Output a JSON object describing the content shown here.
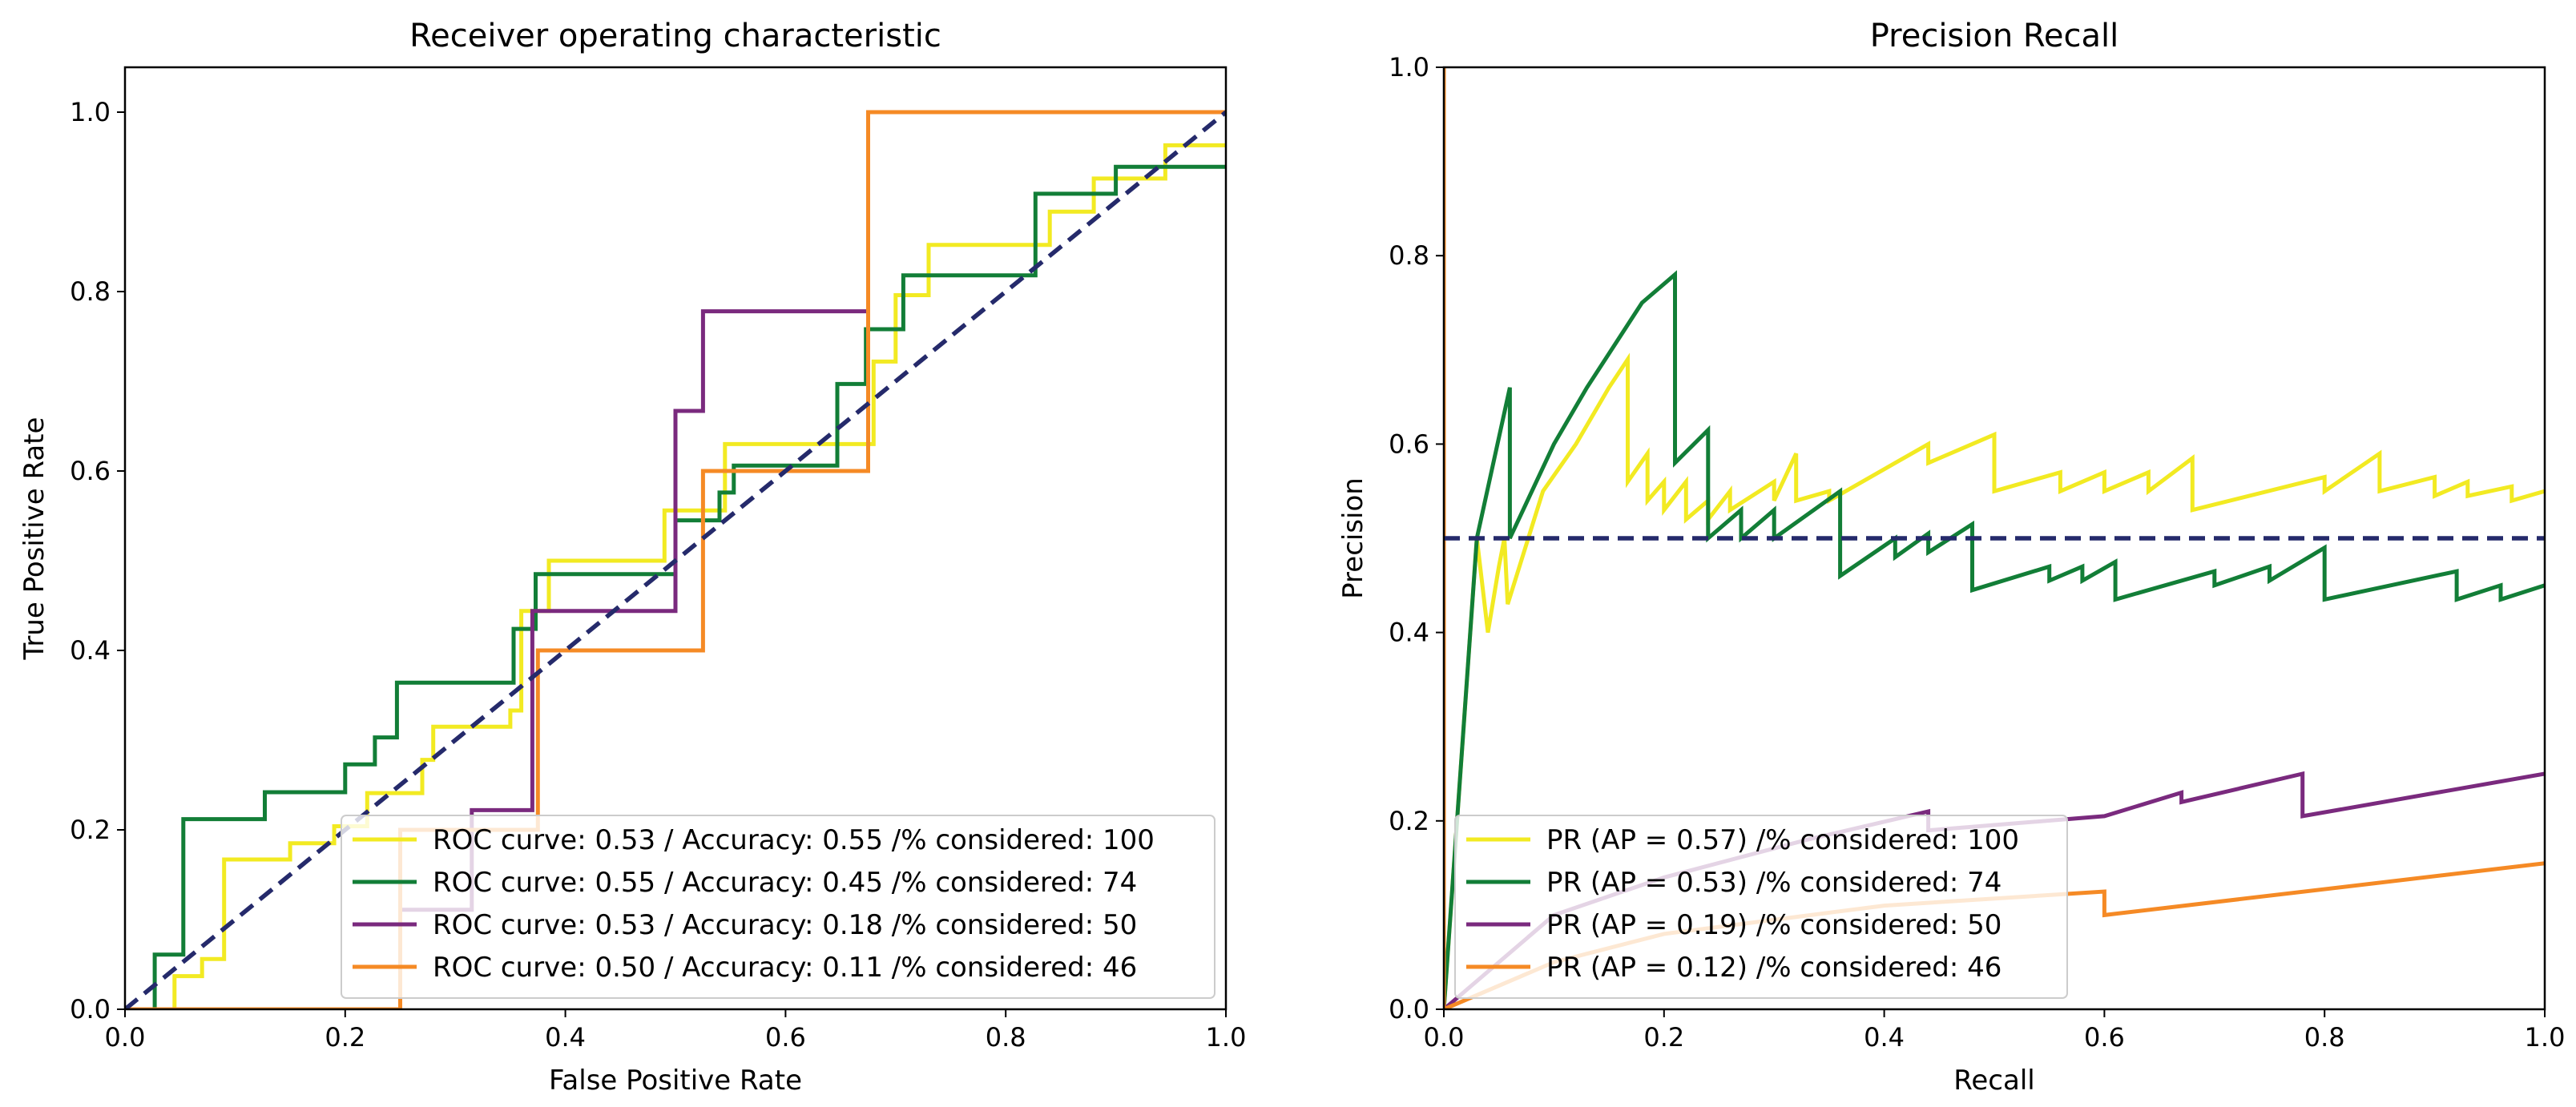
{
  "chart_data": [
    {
      "type": "line",
      "title": "Receiver operating characteristic",
      "xlabel": "False Positive Rate",
      "ylabel": "True Positive Rate",
      "xlim": [
        0.0,
        1.0
      ],
      "ylim": [
        0.0,
        1.05
      ],
      "xticks": [
        "0.0",
        "0.2",
        "0.4",
        "0.6",
        "0.8",
        "1.0"
      ],
      "yticks": [
        "0.0",
        "0.2",
        "0.4",
        "0.6",
        "0.8",
        "1.0"
      ],
      "legend_position": "lower-right",
      "reference_line": {
        "name": "chance",
        "color": "#252a6b",
        "style": "dashed",
        "points": [
          [
            0,
            0
          ],
          [
            1,
            1
          ]
        ]
      },
      "series": [
        {
          "name": "ROC curve: 0.53 / Accuracy: 0.55 /% considered: 100",
          "color": "#f2ea22",
          "points": [
            [
              0,
              0
            ],
            [
              0.045,
              0
            ],
            [
              0.045,
              0.037
            ],
            [
              0.07,
              0.037
            ],
            [
              0.07,
              0.056
            ],
            [
              0.09,
              0.056
            ],
            [
              0.09,
              0.167
            ],
            [
              0.15,
              0.167
            ],
            [
              0.15,
              0.185
            ],
            [
              0.19,
              0.185
            ],
            [
              0.19,
              0.204
            ],
            [
              0.22,
              0.204
            ],
            [
              0.22,
              0.241
            ],
            [
              0.27,
              0.241
            ],
            [
              0.27,
              0.278
            ],
            [
              0.28,
              0.278
            ],
            [
              0.28,
              0.315
            ],
            [
              0.35,
              0.315
            ],
            [
              0.35,
              0.333
            ],
            [
              0.36,
              0.333
            ],
            [
              0.36,
              0.444
            ],
            [
              0.385,
              0.444
            ],
            [
              0.385,
              0.5
            ],
            [
              0.49,
              0.5
            ],
            [
              0.49,
              0.556
            ],
            [
              0.545,
              0.556
            ],
            [
              0.545,
              0.63
            ],
            [
              0.68,
              0.63
            ],
            [
              0.68,
              0.722
            ],
            [
              0.7,
              0.722
            ],
            [
              0.7,
              0.796
            ],
            [
              0.73,
              0.796
            ],
            [
              0.73,
              0.852
            ],
            [
              0.84,
              0.852
            ],
            [
              0.84,
              0.889
            ],
            [
              0.88,
              0.889
            ],
            [
              0.88,
              0.926
            ],
            [
              0.945,
              0.926
            ],
            [
              0.945,
              0.963
            ],
            [
              1.0,
              0.963
            ]
          ]
        },
        {
          "name": "ROC curve: 0.55 / Accuracy: 0.45 /% considered: 74",
          "color": "#127e37",
          "points": [
            [
              0,
              0
            ],
            [
              0.027,
              0
            ],
            [
              0.027,
              0.061
            ],
            [
              0.053,
              0.061
            ],
            [
              0.053,
              0.212
            ],
            [
              0.127,
              0.212
            ],
            [
              0.127,
              0.242
            ],
            [
              0.2,
              0.242
            ],
            [
              0.2,
              0.273
            ],
            [
              0.227,
              0.273
            ],
            [
              0.227,
              0.303
            ],
            [
              0.247,
              0.303
            ],
            [
              0.247,
              0.364
            ],
            [
              0.353,
              0.364
            ],
            [
              0.353,
              0.424
            ],
            [
              0.373,
              0.424
            ],
            [
              0.373,
              0.485
            ],
            [
              0.5,
              0.485
            ],
            [
              0.5,
              0.545
            ],
            [
              0.54,
              0.545
            ],
            [
              0.54,
              0.576
            ],
            [
              0.553,
              0.576
            ],
            [
              0.553,
              0.606
            ],
            [
              0.647,
              0.606
            ],
            [
              0.647,
              0.697
            ],
            [
              0.673,
              0.697
            ],
            [
              0.673,
              0.758
            ],
            [
              0.707,
              0.758
            ],
            [
              0.707,
              0.818
            ],
            [
              0.827,
              0.818
            ],
            [
              0.827,
              0.909
            ],
            [
              0.9,
              0.909
            ],
            [
              0.9,
              0.939
            ],
            [
              1.0,
              0.939
            ]
          ]
        },
        {
          "name": "ROC curve: 0.53 / Accuracy: 0.18 /% considered: 50",
          "color": "#7a2a7e",
          "points": [
            [
              0,
              0
            ],
            [
              0.25,
              0
            ],
            [
              0.25,
              0.111
            ],
            [
              0.315,
              0.111
            ],
            [
              0.315,
              0.222
            ],
            [
              0.37,
              0.222
            ],
            [
              0.37,
              0.444
            ],
            [
              0.5,
              0.444
            ],
            [
              0.5,
              0.667
            ],
            [
              0.525,
              0.667
            ],
            [
              0.525,
              0.778
            ],
            [
              0.675,
              0.778
            ]
          ]
        },
        {
          "name": "ROC curve: 0.50 / Accuracy: 0.11 /% considered: 46",
          "color": "#f58a25",
          "points": [
            [
              0,
              0
            ],
            [
              0.25,
              0
            ],
            [
              0.25,
              0.2
            ],
            [
              0.375,
              0.2
            ],
            [
              0.375,
              0.4
            ],
            [
              0.525,
              0.4
            ],
            [
              0.525,
              0.6
            ],
            [
              0.675,
              0.6
            ],
            [
              0.675,
              1.0
            ],
            [
              1.0,
              1.0
            ]
          ]
        }
      ]
    },
    {
      "type": "line",
      "title": "Precision Recall",
      "xlabel": "Recall",
      "ylabel": "Precision",
      "xlim": [
        0.0,
        1.0
      ],
      "ylim": [
        0.0,
        1.0
      ],
      "xticks": [
        "0.0",
        "0.2",
        "0.4",
        "0.6",
        "0.8",
        "1.0"
      ],
      "yticks": [
        "0.0",
        "0.2",
        "0.4",
        "0.6",
        "0.8",
        "1.0"
      ],
      "legend_position": "lower-left",
      "reference_line": {
        "name": "baseline",
        "color": "#252a6b",
        "style": "dashed",
        "points": [
          [
            0,
            0.5
          ],
          [
            1,
            0.5
          ]
        ]
      },
      "series": [
        {
          "name": "PR (AP = 0.57) /% considered: 100",
          "color": "#f2ea22",
          "points": [
            [
              0,
              0
            ],
            [
              0.03,
              0.5
            ],
            [
              0.04,
              0.4
            ],
            [
              0.05,
              0.47
            ],
            [
              0.055,
              0.5
            ],
            [
              0.058,
              0.43
            ],
            [
              0.09,
              0.55
            ],
            [
              0.12,
              0.6
            ],
            [
              0.15,
              0.66
            ],
            [
              0.167,
              0.69
            ],
            [
              0.167,
              0.56
            ],
            [
              0.185,
              0.59
            ],
            [
              0.185,
              0.54
            ],
            [
              0.2,
              0.56
            ],
            [
              0.2,
              0.53
            ],
            [
              0.22,
              0.56
            ],
            [
              0.22,
              0.52
            ],
            [
              0.24,
              0.54
            ],
            [
              0.24,
              0.52
            ],
            [
              0.26,
              0.55
            ],
            [
              0.26,
              0.53
            ],
            [
              0.3,
              0.56
            ],
            [
              0.3,
              0.54
            ],
            [
              0.32,
              0.59
            ],
            [
              0.32,
              0.54
            ],
            [
              0.35,
              0.55
            ],
            [
              0.35,
              0.54
            ],
            [
              0.41,
              0.58
            ],
            [
              0.44,
              0.6
            ],
            [
              0.44,
              0.58
            ],
            [
              0.5,
              0.61
            ],
            [
              0.5,
              0.55
            ],
            [
              0.56,
              0.57
            ],
            [
              0.56,
              0.55
            ],
            [
              0.6,
              0.57
            ],
            [
              0.6,
              0.55
            ],
            [
              0.64,
              0.57
            ],
            [
              0.64,
              0.55
            ],
            [
              0.68,
              0.585
            ],
            [
              0.68,
              0.53
            ],
            [
              0.8,
              0.565
            ],
            [
              0.8,
              0.55
            ],
            [
              0.85,
              0.59
            ],
            [
              0.85,
              0.55
            ],
            [
              0.9,
              0.565
            ],
            [
              0.9,
              0.545
            ],
            [
              0.93,
              0.56
            ],
            [
              0.93,
              0.545
            ],
            [
              0.97,
              0.555
            ],
            [
              0.97,
              0.54
            ],
            [
              1.0,
              0.55
            ]
          ]
        },
        {
          "name": "PR (AP = 0.53) /% considered: 74",
          "color": "#127e37",
          "points": [
            [
              0,
              0
            ],
            [
              0.03,
              0.5
            ],
            [
              0.06,
              0.66
            ],
            [
              0.06,
              0.5
            ],
            [
              0.1,
              0.6
            ],
            [
              0.13,
              0.66
            ],
            [
              0.18,
              0.75
            ],
            [
              0.21,
              0.78
            ],
            [
              0.21,
              0.58
            ],
            [
              0.24,
              0.615
            ],
            [
              0.24,
              0.5
            ],
            [
              0.27,
              0.53
            ],
            [
              0.27,
              0.5
            ],
            [
              0.3,
              0.53
            ],
            [
              0.3,
              0.5
            ],
            [
              0.36,
              0.55
            ],
            [
              0.36,
              0.46
            ],
            [
              0.41,
              0.5
            ],
            [
              0.41,
              0.48
            ],
            [
              0.44,
              0.505
            ],
            [
              0.44,
              0.485
            ],
            [
              0.48,
              0.515
            ],
            [
              0.48,
              0.445
            ],
            [
              0.55,
              0.47
            ],
            [
              0.55,
              0.455
            ],
            [
              0.58,
              0.47
            ],
            [
              0.58,
              0.455
            ],
            [
              0.61,
              0.475
            ],
            [
              0.61,
              0.435
            ],
            [
              0.7,
              0.465
            ],
            [
              0.7,
              0.45
            ],
            [
              0.75,
              0.47
            ],
            [
              0.75,
              0.455
            ],
            [
              0.8,
              0.49
            ],
            [
              0.8,
              0.435
            ],
            [
              0.92,
              0.465
            ],
            [
              0.92,
              0.435
            ],
            [
              0.96,
              0.45
            ],
            [
              0.96,
              0.435
            ],
            [
              1.0,
              0.45
            ]
          ]
        },
        {
          "name": "PR (AP = 0.19) /% considered: 50",
          "color": "#7a2a7e",
          "points": [
            [
              0,
              0
            ],
            [
              0.1,
              0.1
            ],
            [
              0.2,
              0.14
            ],
            [
              0.33,
              0.18
            ],
            [
              0.44,
              0.21
            ],
            [
              0.44,
              0.19
            ],
            [
              0.6,
              0.205
            ],
            [
              0.67,
              0.23
            ],
            [
              0.67,
              0.22
            ],
            [
              0.78,
              0.25
            ],
            [
              0.78,
              0.205
            ],
            [
              1.0,
              0.25
            ]
          ]
        },
        {
          "name": "PR (AP = 0.12) /% considered: 46",
          "color": "#f58a25",
          "points": [
            [
              0,
              1.0
            ],
            [
              0,
              0
            ],
            [
              0.1,
              0.05
            ],
            [
              0.2,
              0.08
            ],
            [
              0.4,
              0.11
            ],
            [
              0.6,
              0.125
            ],
            [
              0.6,
              0.1
            ],
            [
              1.0,
              0.155
            ]
          ]
        }
      ]
    }
  ]
}
